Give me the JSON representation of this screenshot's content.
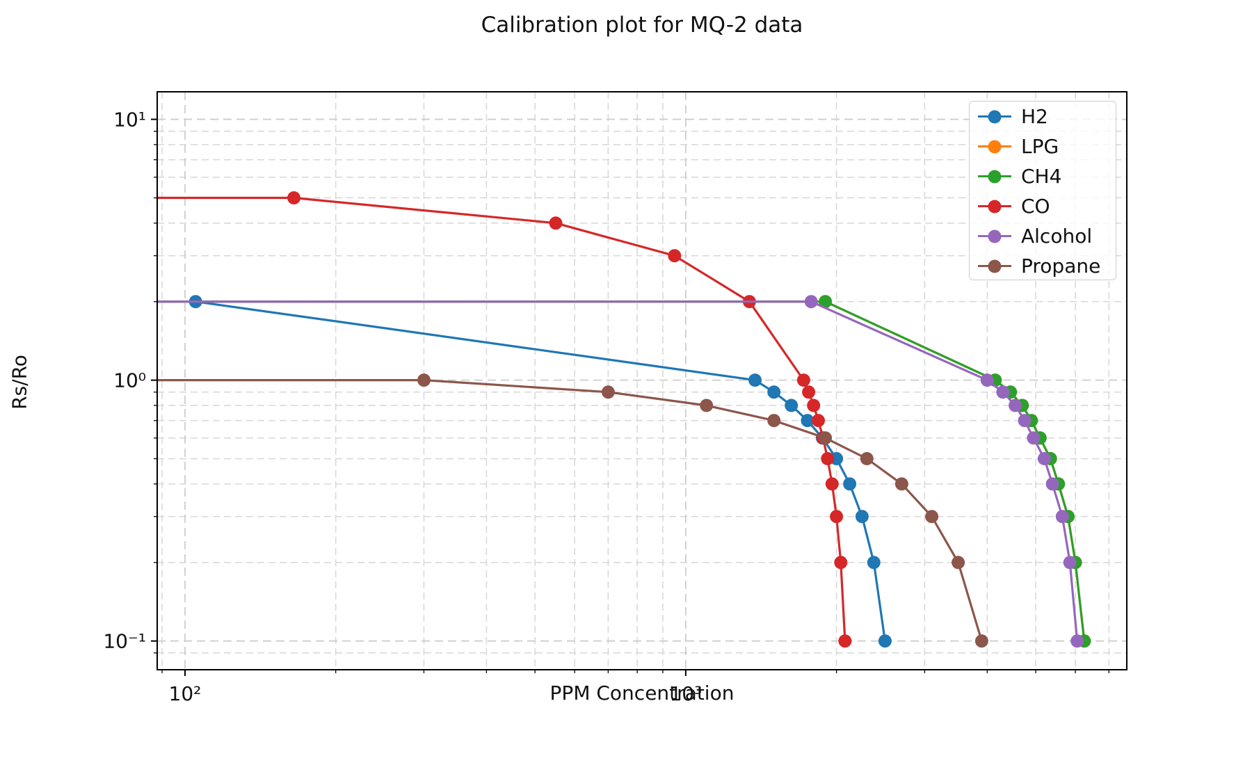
{
  "chart_data": {
    "type": "line",
    "title": "Calibration plot for MQ-2 data",
    "xlabel": "PPM Concentration",
    "ylabel": "Rs/Ro",
    "x_scale": "log",
    "y_scale": "log",
    "x_range": [
      88,
      7600
    ],
    "y_range": [
      0.0776,
      12.75
    ],
    "grid": true,
    "grid_style": "dashed",
    "legend_position": "upper right",
    "x_ticks": [
      {
        "value": 100,
        "label": "10²"
      },
      {
        "value": 1000,
        "label": "10³"
      }
    ],
    "y_ticks": [
      {
        "value": 10,
        "label": "10¹"
      },
      {
        "value": 1,
        "label": "10⁰"
      },
      {
        "value": 0.1,
        "label": "10⁻¹"
      }
    ],
    "x_minor_ticks": [
      90,
      200,
      300,
      400,
      500,
      600,
      700,
      800,
      900,
      2000,
      3000,
      4000,
      5000,
      6000,
      7000
    ],
    "y_minor_ticks": [
      9,
      8,
      7,
      6,
      5,
      4,
      3,
      2,
      0.9,
      0.8,
      0.7,
      0.6,
      0.5,
      0.4,
      0.3,
      0.2,
      0.09
    ],
    "series": [
      {
        "name": "H2",
        "color": "#1f77b4",
        "flat_from_left": false,
        "points": [
          [
            105,
            2.0
          ],
          [
            1375,
            1.0
          ],
          [
            1500,
            0.9
          ],
          [
            1625,
            0.8
          ],
          [
            1750,
            0.7
          ],
          [
            1875,
            0.6
          ],
          [
            2000,
            0.5
          ],
          [
            2125,
            0.4
          ],
          [
            2250,
            0.3
          ],
          [
            2375,
            0.2
          ],
          [
            2500,
            0.1
          ]
        ]
      },
      {
        "name": "LPG",
        "color": "#ff7f0e",
        "flat_from_left": true,
        "points": [
          [
            1900,
            2.0
          ],
          [
            4150,
            1.0
          ],
          [
            4450,
            0.9
          ],
          [
            4700,
            0.8
          ],
          [
            4900,
            0.7
          ],
          [
            5100,
            0.6
          ],
          [
            5350,
            0.5
          ],
          [
            5550,
            0.4
          ],
          [
            5800,
            0.3
          ],
          [
            6000,
            0.2
          ],
          [
            6250,
            0.1
          ]
        ]
      },
      {
        "name": "CH4",
        "color": "#2ca02c",
        "flat_from_left": true,
        "points": [
          [
            1900,
            2.0
          ],
          [
            4150,
            1.0
          ],
          [
            4450,
            0.9
          ],
          [
            4700,
            0.8
          ],
          [
            4900,
            0.7
          ],
          [
            5100,
            0.6
          ],
          [
            5350,
            0.5
          ],
          [
            5550,
            0.4
          ],
          [
            5800,
            0.3
          ],
          [
            6000,
            0.2
          ],
          [
            6250,
            0.1
          ]
        ]
      },
      {
        "name": "CO",
        "color": "#d62728",
        "flat_from_left": true,
        "points": [
          [
            165,
            5.0
          ],
          [
            550,
            4.0
          ],
          [
            950,
            3.0
          ],
          [
            1340,
            2.0
          ],
          [
            1720,
            1.0
          ],
          [
            1760,
            0.9
          ],
          [
            1800,
            0.8
          ],
          [
            1840,
            0.7
          ],
          [
            1880,
            0.6
          ],
          [
            1920,
            0.5
          ],
          [
            1960,
            0.4
          ],
          [
            2000,
            0.3
          ],
          [
            2040,
            0.2
          ],
          [
            2080,
            0.1
          ]
        ]
      },
      {
        "name": "Alcohol",
        "color": "#9467bd",
        "flat_from_left": true,
        "points": [
          [
            1780,
            2.0
          ],
          [
            4000,
            1.0
          ],
          [
            4300,
            0.9
          ],
          [
            4550,
            0.8
          ],
          [
            4750,
            0.7
          ],
          [
            4950,
            0.6
          ],
          [
            5200,
            0.5
          ],
          [
            5400,
            0.4
          ],
          [
            5650,
            0.3
          ],
          [
            5850,
            0.2
          ],
          [
            6050,
            0.1
          ]
        ]
      },
      {
        "name": "Propane",
        "color": "#8c564b",
        "flat_from_left": true,
        "points": [
          [
            300,
            1.0
          ],
          [
            700,
            0.9
          ],
          [
            1100,
            0.8
          ],
          [
            1500,
            0.7
          ],
          [
            1900,
            0.6
          ],
          [
            2300,
            0.5
          ],
          [
            2700,
            0.4
          ],
          [
            3100,
            0.3
          ],
          [
            3500,
            0.2
          ],
          [
            3900,
            0.1
          ]
        ]
      }
    ],
    "colors": {
      "spine": "#000000",
      "grid_major": "#cdcdcd",
      "grid_minor": "#d9d9d9",
      "text": "#111111",
      "legend_border": "#cccccc"
    }
  }
}
